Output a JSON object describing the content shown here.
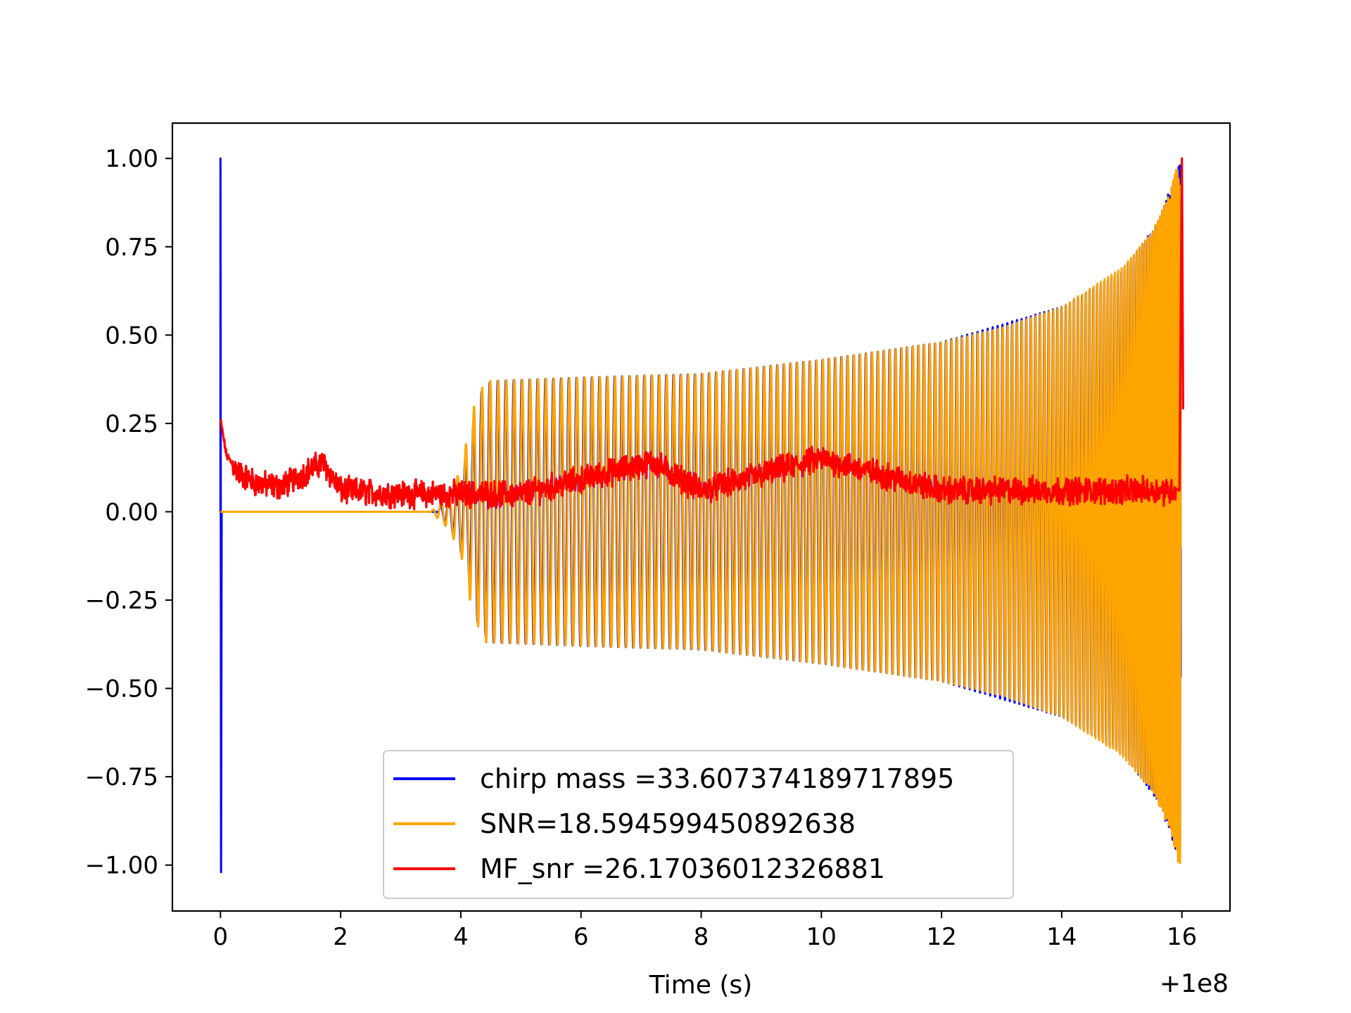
{
  "chart_data": {
    "type": "line",
    "title": "",
    "xlabel": "Time (s)",
    "ylabel": "",
    "x_offset_label": "+1e8",
    "xlim": [
      -0.8,
      16.8
    ],
    "ylim": [
      -1.13,
      1.1
    ],
    "x_ticks": [
      0,
      2,
      4,
      6,
      8,
      10,
      12,
      14,
      16
    ],
    "x_tick_labels": [
      "0",
      "2",
      "4",
      "6",
      "8",
      "10",
      "12",
      "14",
      "16"
    ],
    "y_ticks": [
      1.0,
      0.75,
      0.5,
      0.25,
      0.0,
      -0.25,
      -0.5,
      -0.75,
      -1.0
    ],
    "y_tick_labels": [
      "1.00",
      "0.75",
      "0.50",
      "0.25",
      "0.00",
      "−0.25",
      "−0.50",
      "−0.75",
      "−1.00"
    ],
    "grid": false,
    "legend_position": "lower center",
    "series": [
      {
        "name": "chirp mass =33.607374189717895",
        "color": "#0000ff",
        "kind": "normalized chirp waveform with initial spike",
        "points": [
          [
            0.0,
            1.0
          ],
          [
            0.01,
            -1.02
          ],
          [
            3.6,
            0.0
          ],
          [
            3.9,
            0.07
          ],
          [
            4.1,
            0.16
          ],
          [
            4.3,
            0.33
          ],
          [
            4.5,
            0.37
          ],
          [
            6.0,
            0.38
          ],
          [
            8.0,
            0.39
          ],
          [
            10.0,
            0.43
          ],
          [
            12.0,
            0.48
          ],
          [
            14.0,
            0.58
          ],
          [
            15.0,
            0.68
          ],
          [
            15.6,
            0.82
          ],
          [
            15.95,
            0.98
          ]
        ]
      },
      {
        "name": "SNR=18.594599450892638",
        "color": "#ffa500",
        "kind": "normalized whitened waveform envelope",
        "points": [
          [
            0.0,
            0.0
          ],
          [
            3.5,
            0.0
          ],
          [
            3.8,
            0.05
          ],
          [
            4.0,
            0.12
          ],
          [
            4.2,
            0.29
          ],
          [
            4.4,
            0.37
          ],
          [
            6.0,
            0.38
          ],
          [
            8.0,
            0.39
          ],
          [
            10.0,
            0.43
          ],
          [
            12.0,
            0.48
          ],
          [
            13.0,
            0.52
          ],
          [
            14.0,
            0.58
          ],
          [
            15.0,
            0.69
          ],
          [
            15.5,
            0.79
          ],
          [
            15.8,
            0.9
          ],
          [
            15.95,
            1.0
          ]
        ]
      },
      {
        "name": "MF_snr =26.17036012326881",
        "color": "#ff0000",
        "kind": "normalized matched-filter SNR time series",
        "points": [
          [
            0.0,
            0.26
          ],
          [
            0.1,
            0.16
          ],
          [
            0.3,
            0.11
          ],
          [
            0.6,
            0.08
          ],
          [
            1.0,
            0.07
          ],
          [
            1.7,
            0.14
          ],
          [
            2.0,
            0.06
          ],
          [
            3.0,
            0.05
          ],
          [
            4.0,
            0.05
          ],
          [
            5.0,
            0.05
          ],
          [
            7.2,
            0.14
          ],
          [
            8.0,
            0.06
          ],
          [
            10.0,
            0.15
          ],
          [
            12.0,
            0.06
          ],
          [
            14.0,
            0.06
          ],
          [
            15.9,
            0.06
          ],
          [
            16.0,
            1.0
          ],
          [
            16.02,
            0.29
          ]
        ]
      }
    ]
  }
}
